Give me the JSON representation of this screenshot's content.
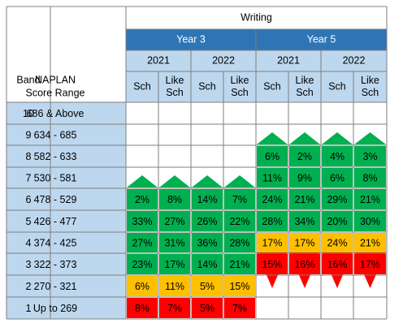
{
  "header": {
    "title": "Writing",
    "band_label": "Band",
    "range_label": [
      "NAPLAN",
      "Score Range"
    ],
    "groups": [
      "Year 3",
      "Year 5"
    ],
    "years": [
      "2021",
      "2022",
      "2021",
      "2022"
    ],
    "columns": [
      [
        "Sch"
      ],
      [
        "Like",
        "Sch"
      ],
      [
        "Sch"
      ],
      [
        "Like",
        "Sch"
      ],
      [
        "Sch"
      ],
      [
        "Like",
        "Sch"
      ],
      [
        "Sch"
      ],
      [
        "Like",
        "Sch"
      ]
    ]
  },
  "table": {
    "rows": [
      {
        "band": "10",
        "range": "686 & Above",
        "cells": [
          null,
          null,
          null,
          null,
          null,
          null,
          null,
          null
        ]
      },
      {
        "band": "9",
        "range": "634 - 685",
        "cells": [
          null,
          null,
          null,
          null,
          null,
          null,
          null,
          null
        ]
      },
      {
        "band": "8",
        "range": "582 - 633",
        "cells": [
          null,
          null,
          null,
          null,
          "6%",
          "2%",
          "4%",
          "3%"
        ]
      },
      {
        "band": "7",
        "range": "530 - 581",
        "cells": [
          null,
          null,
          null,
          null,
          "11%",
          "9%",
          "6%",
          "8%"
        ]
      },
      {
        "band": "6",
        "range": "478 - 529",
        "cells": [
          "2%",
          "8%",
          "14%",
          "7%",
          "24%",
          "21%",
          "29%",
          "21%"
        ]
      },
      {
        "band": "5",
        "range": "426 - 477",
        "cells": [
          "33%",
          "27%",
          "26%",
          "22%",
          "28%",
          "34%",
          "20%",
          "30%"
        ]
      },
      {
        "band": "4",
        "range": "374 - 425",
        "cells": [
          "27%",
          "31%",
          "36%",
          "28%",
          "17%",
          "17%",
          "24%",
          "21%"
        ]
      },
      {
        "band": "3",
        "range": "322 - 373",
        "cells": [
          "23%",
          "17%",
          "14%",
          "21%",
          "15%",
          "16%",
          "16%",
          "17%"
        ]
      },
      {
        "band": "2",
        "range": "270 - 321",
        "cells": [
          "6%",
          "11%",
          "5%",
          "15%",
          null,
          null,
          null,
          null
        ]
      },
      {
        "band": "1",
        "range": "Up to 269",
        "cells": [
          "8%",
          "7%",
          "5%",
          "7%",
          null,
          null,
          null,
          null
        ]
      }
    ]
  }
}
